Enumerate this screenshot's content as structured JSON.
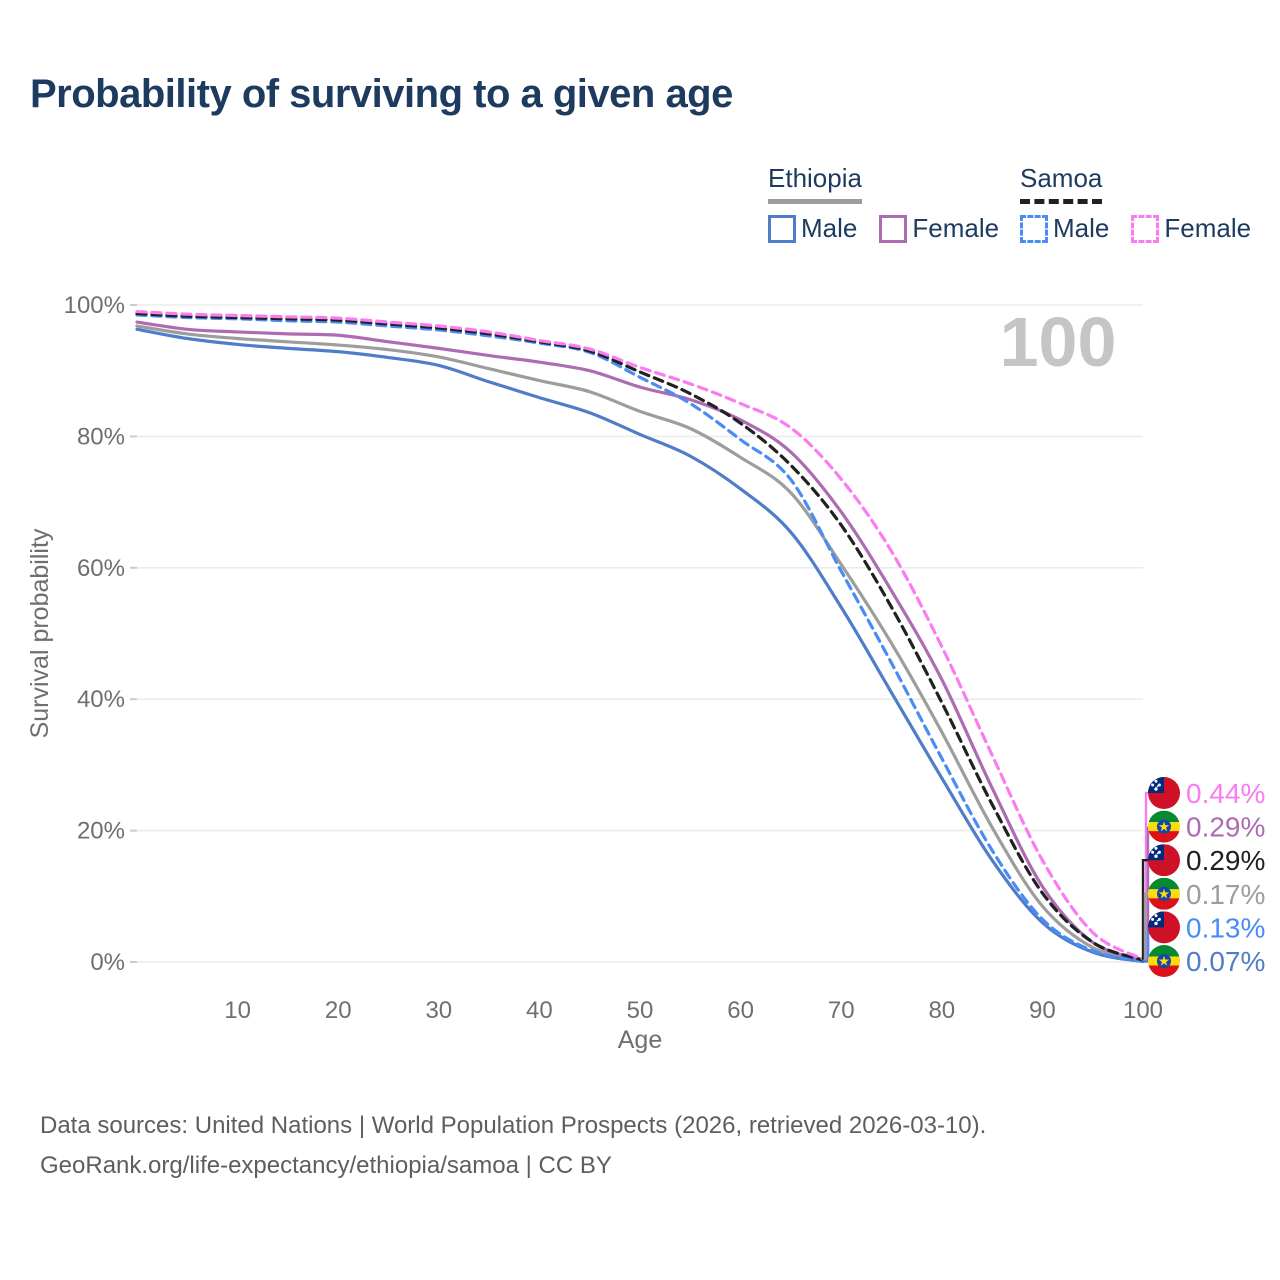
{
  "page": {
    "title": "Probability of surviving to a given age",
    "watermark_age": "100",
    "footer_line1": "Data sources: United Nations | World Population Prospects (2026, retrieved 2026-03-10).",
    "footer_line2": "GeoRank.org/life-expectancy/ethiopia/samoa | CC BY"
  },
  "legend": {
    "groups": [
      {
        "label": "Ethiopia",
        "line_style": "solid",
        "line_color": "#9d9d9d",
        "items": [
          {
            "label": "Male",
            "color": "#4f7dc9",
            "dashed": false
          },
          {
            "label": "Female",
            "color": "#ad6cb2",
            "dashed": false
          }
        ]
      },
      {
        "label": "Samoa",
        "line_style": "dashed",
        "line_color": "#212121",
        "items": [
          {
            "label": "Male",
            "color": "#4a8cf5",
            "dashed": true
          },
          {
            "label": "Female",
            "color": "#fa7cf0",
            "dashed": true
          }
        ]
      }
    ]
  },
  "chart_data": {
    "type": "line",
    "title": "Probability of surviving to a given age",
    "xlabel": "Age",
    "ylabel": "Survival probability",
    "xlim": [
      0,
      100
    ],
    "ylim": [
      0,
      100
    ],
    "grid": "horizontal-only",
    "x_ticks": [
      10,
      20,
      30,
      40,
      50,
      60,
      70,
      80,
      90,
      100
    ],
    "y_ticks": [
      0,
      20,
      40,
      60,
      80,
      100
    ],
    "y_tick_labels": [
      "0%",
      "20%",
      "40%",
      "60%",
      "80%",
      "100%"
    ],
    "x": [
      0,
      5,
      10,
      15,
      20,
      25,
      30,
      35,
      40,
      45,
      50,
      55,
      60,
      65,
      70,
      75,
      80,
      85,
      90,
      95,
      100
    ],
    "series": [
      {
        "name": "Ethiopia Total",
        "country": "Ethiopia",
        "sex": "Total",
        "color": "#9d9d9d",
        "dashed": false,
        "values": [
          96.8,
          95.6,
          94.9,
          94.4,
          93.9,
          93.2,
          92.1,
          90.3,
          88.5,
          86.8,
          83.8,
          81.2,
          76.8,
          71.4,
          60.5,
          48.5,
          35.0,
          20.5,
          8.5,
          2.2,
          0.17
        ],
        "end_label": "0.17%"
      },
      {
        "name": "Ethiopia Female",
        "country": "Ethiopia",
        "sex": "Female",
        "color": "#ad6cb2",
        "dashed": false,
        "values": [
          97.4,
          96.3,
          95.9,
          95.6,
          95.4,
          94.4,
          93.4,
          92.3,
          91.3,
          90.0,
          87.5,
          85.6,
          82.5,
          77.6,
          68.5,
          56.5,
          43.0,
          26.5,
          11.5,
          3.0,
          0.29
        ],
        "end_label": "0.29%"
      },
      {
        "name": "Ethiopia Male",
        "country": "Ethiopia",
        "sex": "Male",
        "color": "#4f7dc9",
        "dashed": false,
        "values": [
          96.3,
          94.9,
          94.0,
          93.4,
          92.9,
          92.0,
          90.8,
          88.3,
          85.9,
          83.6,
          80.3,
          77.0,
          72.0,
          65.4,
          54.0,
          41.0,
          28.0,
          15.5,
          6.0,
          1.5,
          0.07
        ],
        "end_label": "0.07%"
      },
      {
        "name": "Samoa Male",
        "country": "Samoa",
        "sex": "Male",
        "color": "#4a8cf5",
        "dashed": true,
        "values": [
          98.5,
          98.1,
          97.9,
          97.6,
          97.4,
          96.8,
          96.2,
          95.3,
          94.2,
          92.8,
          89.0,
          85.0,
          79.5,
          73.4,
          59.5,
          45.5,
          31.0,
          17.0,
          6.5,
          1.7,
          0.13
        ],
        "end_label": "0.13%"
      },
      {
        "name": "Samoa Total",
        "country": "Samoa",
        "sex": "Total",
        "color": "#212121",
        "dashed": true,
        "values": [
          98.7,
          98.3,
          98.1,
          97.9,
          97.7,
          97.1,
          96.5,
          95.6,
          94.4,
          93.0,
          89.8,
          86.5,
          82.0,
          75.6,
          66.5,
          54.0,
          39.5,
          24.0,
          10.5,
          3.0,
          0.29
        ],
        "end_label": "0.29%"
      },
      {
        "name": "Samoa Female",
        "country": "Samoa",
        "sex": "Female",
        "color": "#fa7cf0",
        "dashed": true,
        "values": [
          99.0,
          98.6,
          98.4,
          98.2,
          98.0,
          97.4,
          96.8,
          95.9,
          94.6,
          93.3,
          90.5,
          88.0,
          85.0,
          81.3,
          73.5,
          62.5,
          48.0,
          31.5,
          15.5,
          4.5,
          0.44
        ],
        "end_label": "0.44%"
      }
    ],
    "callouts": [
      {
        "flag": "samoa",
        "series": "Samoa Female",
        "label": "0.44%",
        "color": "#fa7cf0"
      },
      {
        "flag": "ethiopia",
        "series": "Ethiopia Female",
        "label": "0.29%",
        "color": "#ad6cb2"
      },
      {
        "flag": "samoa",
        "series": "Samoa Total",
        "label": "0.29%",
        "color": "#212121"
      },
      {
        "flag": "ethiopia",
        "series": "Ethiopia Total",
        "label": "0.17%",
        "color": "#9d9d9d"
      },
      {
        "flag": "samoa",
        "series": "Samoa Male",
        "label": "0.13%",
        "color": "#4a8cf5"
      },
      {
        "flag": "ethiopia",
        "series": "Ethiopia Male",
        "label": "0.07%",
        "color": "#4f7dc9"
      }
    ]
  }
}
